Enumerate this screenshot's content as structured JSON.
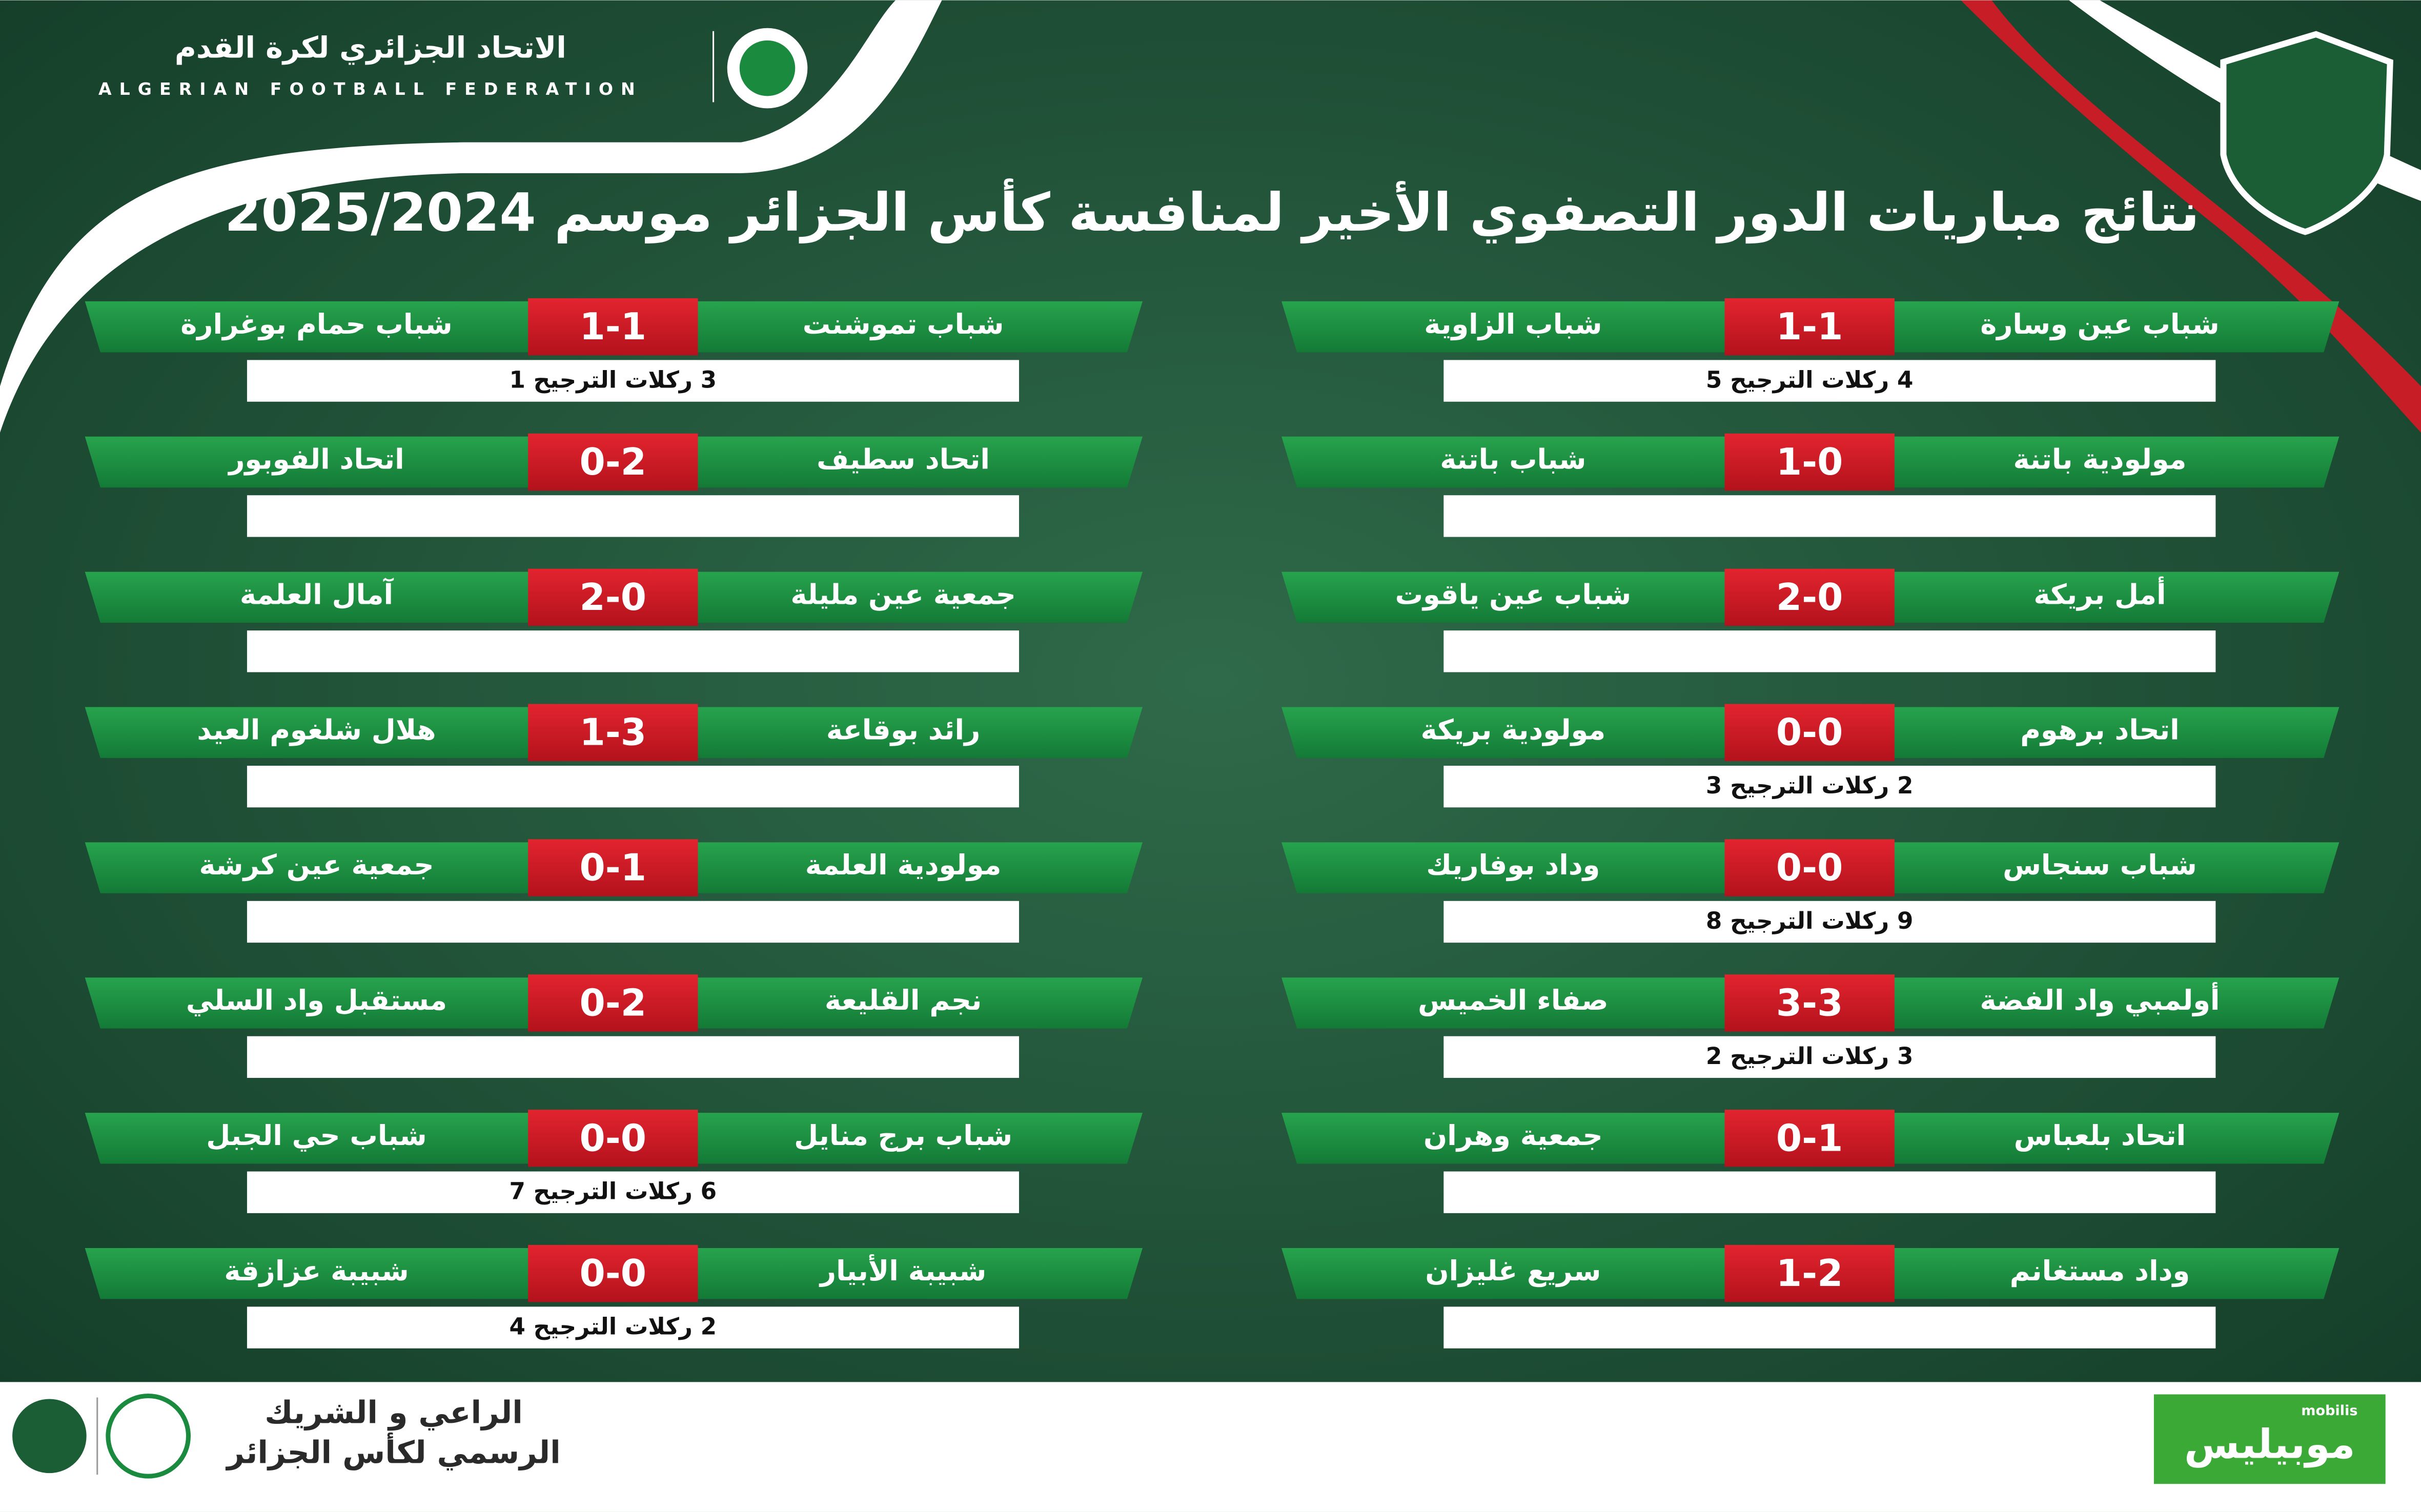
{
  "header": {
    "federation_ar": "الاتحاد الجزائري لكرة القدم",
    "federation_en": "ALGERIAN FOOTBALL FEDERATION",
    "title": "نتائج مباريات الدور التصفوي الأخير لمنافسة كأس الجزائر موسم 2025/2024"
  },
  "matches": {
    "right": [
      {
        "home": "شباب عين وسارة",
        "score": "1-1",
        "away": "شباب الزاوية",
        "penalties": "4 ركلات الترجيح 5"
      },
      {
        "home": "مولودية باتنة",
        "score": "1-0",
        "away": "شباب باتنة"
      },
      {
        "home": "أمل بريكة",
        "score": "2-0",
        "away": "شباب عين ياقوت"
      },
      {
        "home": "اتحاد برهوم",
        "score": "0-0",
        "away": "مولودية بريكة",
        "penalties": "2 ركلات الترجيح 3"
      },
      {
        "home": "شباب سنجاس",
        "score": "0-0",
        "away": "وداد بوفاريك",
        "penalties": "9 ركلات الترجيح 8"
      },
      {
        "home": "أولمبي واد الفضة",
        "score": "3-3",
        "away": "صفاء الخميس",
        "penalties": "3 ركلات الترجيح 2"
      },
      {
        "home": "اتحاد بلعباس",
        "score": "0-1",
        "away": "جمعية وهران"
      },
      {
        "home": "وداد مستغانم",
        "score": "1-2",
        "away": "سريع غليزان"
      }
    ],
    "left": [
      {
        "home": "شباب تموشنت",
        "score": "1-1",
        "away": "شباب حمام بوغرارة",
        "penalties": "3 ركلات الترجيح 1"
      },
      {
        "home": "اتحاد سطيف",
        "score": "0-2",
        "away": "اتحاد الفوبور"
      },
      {
        "home": "جمعية عين مليلة",
        "score": "2-0",
        "away": "آمال العلمة"
      },
      {
        "home": "رائد بوقاعة",
        "score": "1-3",
        "away": "هلال شلغوم العيد"
      },
      {
        "home": "مولودية العلمة",
        "score": "0-1",
        "away": "جمعية عين كرشة"
      },
      {
        "home": "نجم القليعة",
        "score": "0-2",
        "away": "مستقبل واد السلي"
      },
      {
        "home": "شباب برج منايل",
        "score": "0-0",
        "away": "شباب حي الجبل",
        "penalties": "6 ركلات الترجيح 7"
      },
      {
        "home": "شبيبة الأبيار",
        "score": "0-0",
        "away": "شبيبة عزازقة",
        "penalties": "2 ركلات الترجيح 4"
      }
    ]
  },
  "footer": {
    "sponsor_line1": "الراعي و الشريك",
    "sponsor_line2": "الرسمي لكأس الجزائر",
    "brand": "موبيليس",
    "brand_latin": "mobilis"
  }
}
